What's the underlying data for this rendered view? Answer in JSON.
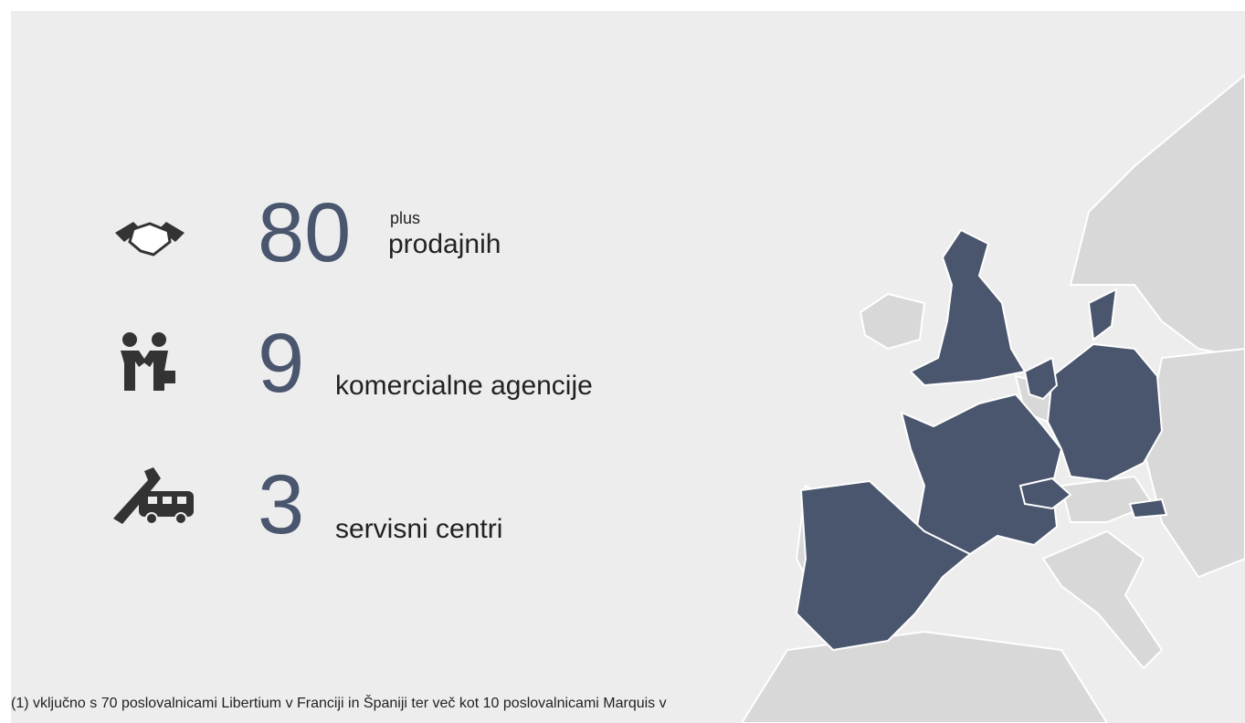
{
  "stats": [
    {
      "number": 80,
      "note": "plus",
      "label": "prodajnih"
    },
    {
      "number": 9,
      "label": "komercialne agencije"
    },
    {
      "number": 3,
      "label": "servisni centri"
    }
  ],
  "footnote": "(1) vključno s 70 poslovalnicami Libertium v Franciji in Španiji ter več kot 10 poslovalnicami Marquis v"
}
